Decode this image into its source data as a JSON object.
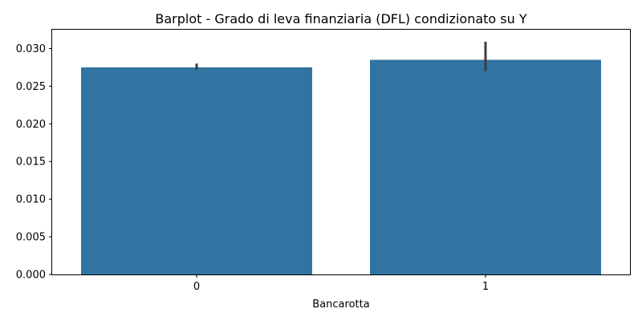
{
  "chart_data": {
    "type": "bar",
    "title": "Barplot - Grado di leva finanziaria (DFL) condizionato su Y",
    "xlabel": "Bancarotta",
    "ylabel": "",
    "categories": [
      "0",
      "1"
    ],
    "values": [
      0.0275,
      0.0285
    ],
    "error_low": [
      0.0272,
      0.027
    ],
    "error_high": [
      0.028,
      0.0309
    ],
    "ylim": [
      0,
      0.0325
    ],
    "yticks": [
      0,
      0.005,
      0.01,
      0.015,
      0.02,
      0.025,
      0.03
    ],
    "ytick_labels": [
      "0.000",
      "0.005",
      "0.010",
      "0.015",
      "0.020",
      "0.025",
      "0.030"
    ],
    "grid": false,
    "bar_color": "#3274a1",
    "errbar_color": "#3d3d3d"
  }
}
